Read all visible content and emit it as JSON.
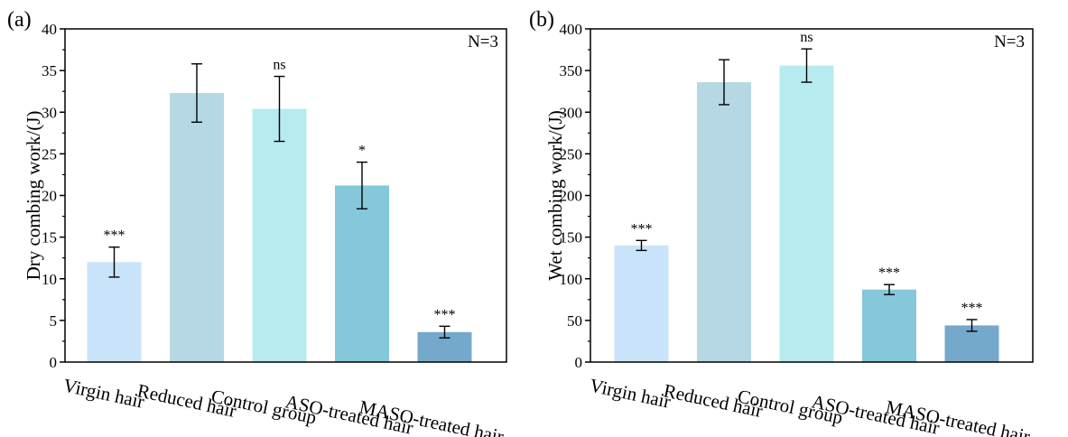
{
  "chart_data": [
    {
      "type": "bar",
      "panel_label": "(a)",
      "note": "N=3",
      "ylabel": "Dry combing work/(J)",
      "ylim": [
        0,
        40
      ],
      "yticks": [
        "0",
        "5",
        "10",
        "15",
        "20",
        "25",
        "30",
        "35",
        "40"
      ],
      "categories": [
        "Virgin hair",
        "Reduced hair",
        "Control group",
        "ASO-treated hair",
        "MASO-treated hair"
      ],
      "values": [
        12.0,
        32.3,
        30.4,
        21.2,
        3.6
      ],
      "errors": [
        1.8,
        3.5,
        3.9,
        2.8,
        0.7
      ],
      "significance": [
        "***",
        "",
        "ns",
        "*",
        "***"
      ],
      "colors": [
        "#c9e3fb",
        "#b6d8e5",
        "#b7ebf0",
        "#84c8d9",
        "#75a9cb"
      ]
    },
    {
      "type": "bar",
      "panel_label": "(b)",
      "note": "N=3",
      "ylabel": "Wet combing work/(J)",
      "ylim": [
        0,
        400
      ],
      "yticks": [
        "0",
        "50",
        "100",
        "150",
        "200",
        "250",
        "300",
        "350",
        "400"
      ],
      "categories": [
        "Virgin hair",
        "Reduced hair",
        "Control group",
        "ASO-treated hair",
        "MASO-treated hair"
      ],
      "values": [
        140,
        336,
        356,
        87,
        44
      ],
      "errors": [
        6,
        27,
        20,
        6,
        7
      ],
      "significance": [
        "***",
        "",
        "ns",
        "***",
        "***"
      ],
      "colors": [
        "#c9e3fb",
        "#b6d8e5",
        "#b7ebf0",
        "#84c8d9",
        "#75a9cb"
      ]
    }
  ]
}
